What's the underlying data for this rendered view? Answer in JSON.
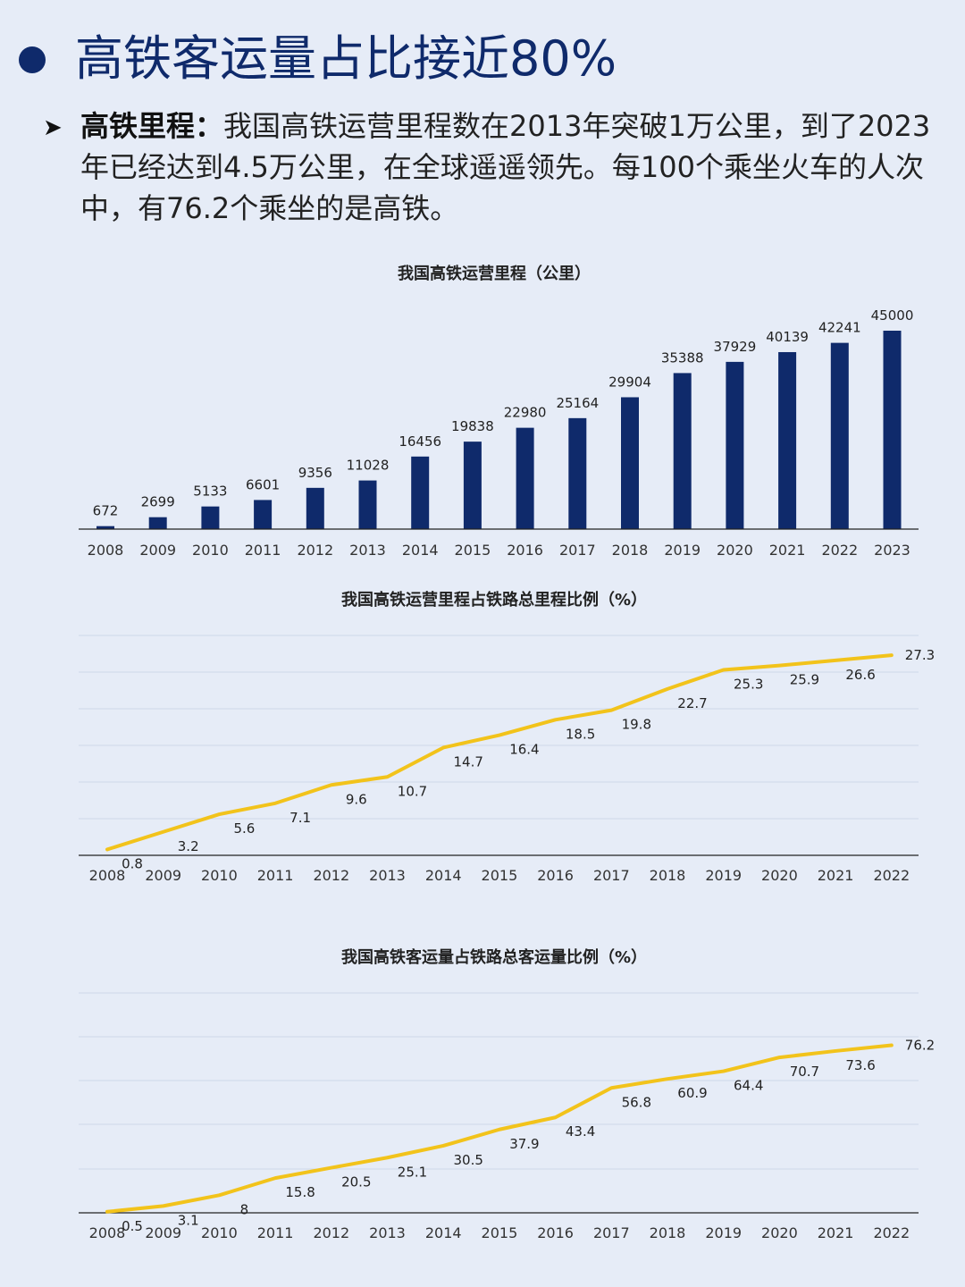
{
  "header": {
    "title": "高铁客运量占比接近80%",
    "lead_label": "高铁里程：",
    "lead_text": "我国高铁运营里程数在2013年突破1万公里，到了2023年已经达到4.5万公里，在全球遥遥领先。每100个乘坐火车的人次中，有76.2个乘坐的是高铁。"
  },
  "colors": {
    "accent": "#0f2a6b",
    "line": "#f2c31b",
    "background": "#e6ecf7"
  },
  "chart_data": [
    {
      "type": "bar",
      "title": "我国高铁运营里程（公里）",
      "categories": [
        "2008",
        "2009",
        "2010",
        "2011",
        "2012",
        "2013",
        "2014",
        "2015",
        "2016",
        "2017",
        "2018",
        "2019",
        "2020",
        "2021",
        "2022",
        "2023"
      ],
      "values": [
        672,
        2699,
        5133,
        6601,
        9356,
        11028,
        16456,
        19838,
        22980,
        25164,
        29904,
        35388,
        37929,
        40139,
        42241,
        45000
      ],
      "ylim": [
        0,
        50000
      ],
      "grid": false,
      "data_labels": true
    },
    {
      "type": "line",
      "title": "我国高铁运营里程占铁路总里程比例（%）",
      "categories": [
        "2008",
        "2009",
        "2010",
        "2011",
        "2012",
        "2013",
        "2014",
        "2015",
        "2016",
        "2017",
        "2018",
        "2019",
        "2020",
        "2021",
        "2022"
      ],
      "values": [
        0.8,
        3.2,
        5.6,
        7.1,
        9.6,
        10.7,
        14.7,
        16.4,
        18.5,
        19.8,
        22.7,
        25.3,
        25.9,
        26.6,
        27.3
      ],
      "ylim": [
        0,
        30
      ],
      "grid": true,
      "data_labels": true
    },
    {
      "type": "line",
      "title": "我国高铁客运量占铁路总客运量比例（%）",
      "categories": [
        "2008",
        "2009",
        "2010",
        "2011",
        "2012",
        "2013",
        "2014",
        "2015",
        "2016",
        "2017",
        "2018",
        "2019",
        "2020",
        "2021",
        "2022"
      ],
      "values": [
        0.5,
        3.1,
        8.0,
        15.8,
        20.5,
        25.1,
        30.5,
        37.9,
        43.4,
        56.8,
        60.9,
        64.4,
        70.7,
        73.6,
        76.2
      ],
      "ylim": [
        0,
        100
      ],
      "grid": true,
      "data_labels": true
    }
  ]
}
